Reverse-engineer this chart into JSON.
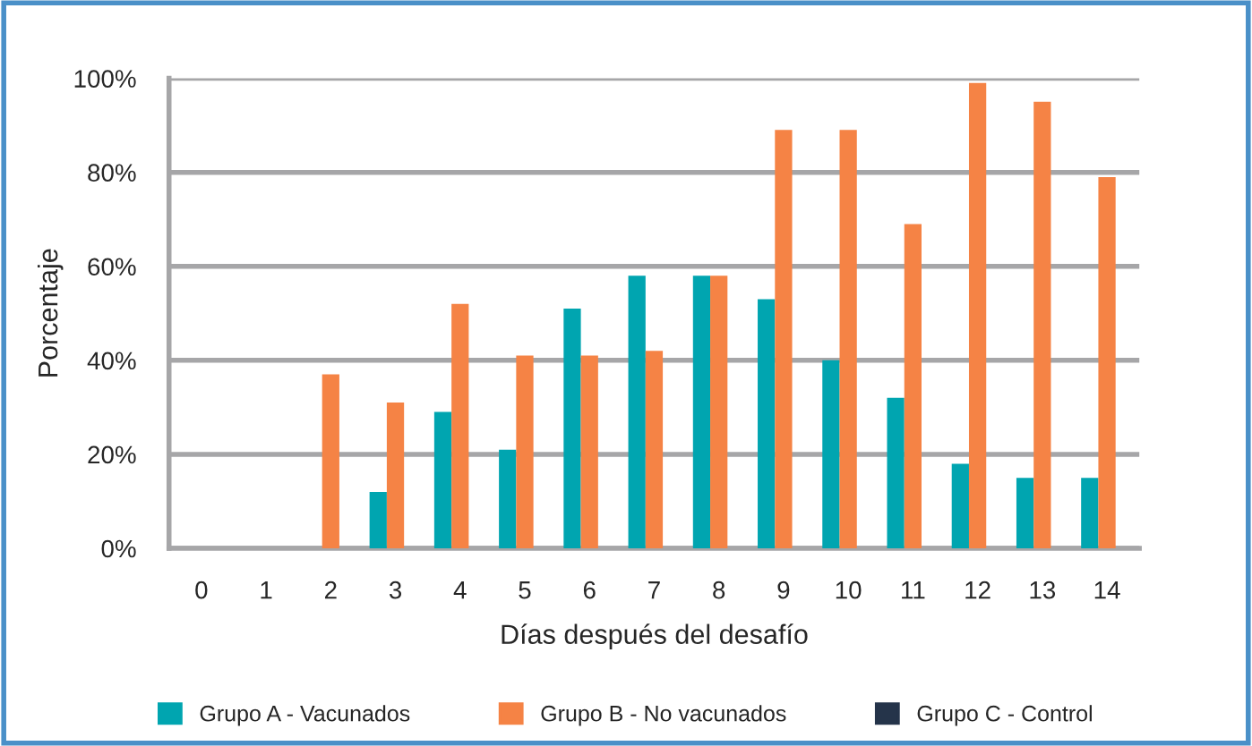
{
  "chart_data": {
    "type": "bar",
    "xlabel": "Días después del desafío",
    "ylabel": "Porcentaje",
    "categories": [
      "0",
      "1",
      "2",
      "3",
      "4",
      "5",
      "6",
      "7",
      "8",
      "9",
      "10",
      "11",
      "12",
      "13",
      "14"
    ],
    "series": [
      {
        "name": "Grupo A - Vacunados",
        "color": "#00a5b0",
        "values": [
          0,
          0,
          0,
          12,
          29,
          21,
          51,
          58,
          58,
          53,
          40,
          32,
          18,
          15,
          15
        ]
      },
      {
        "name": "Grupo B - No vacunados",
        "color": "#f58345",
        "values": [
          0,
          0,
          37,
          31,
          52,
          41,
          41,
          42,
          58,
          89,
          89,
          69,
          99,
          95,
          79
        ]
      },
      {
        "name": "Grupo C - Control",
        "color": "#25344a",
        "values": [
          0,
          0,
          0,
          0,
          0,
          0,
          0,
          0,
          0,
          0,
          0,
          0,
          0,
          0,
          0
        ]
      }
    ],
    "ylim": [
      0,
      100
    ],
    "yticks": [
      {
        "value": 0,
        "label": "0%"
      },
      {
        "value": 20,
        "label": "20%"
      },
      {
        "value": 40,
        "label": "40%"
      },
      {
        "value": 60,
        "label": "60%"
      },
      {
        "value": 80,
        "label": "80%"
      },
      {
        "value": 100,
        "label": "100%"
      }
    ],
    "grid": "y",
    "legend": "bottom"
  }
}
